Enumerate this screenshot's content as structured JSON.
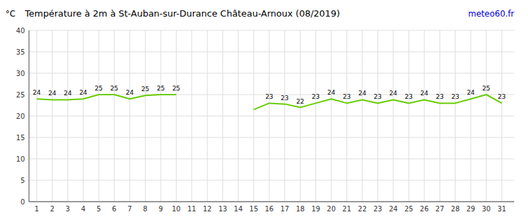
{
  "chart_data": {
    "type": "line",
    "title": "Température à 2m à St-Auban-sur-Durance Château-Arnoux (08/2019)",
    "y_label": "°C",
    "annotations": [
      "meteo60.fr"
    ],
    "x": [
      1,
      2,
      3,
      4,
      5,
      6,
      7,
      8,
      9,
      10,
      11,
      12,
      13,
      14,
      15,
      16,
      17,
      18,
      19,
      20,
      21,
      22,
      23,
      24,
      25,
      26,
      27,
      28,
      29,
      30,
      31
    ],
    "values": [
      24.0,
      23.8,
      23.8,
      24.0,
      25.0,
      25.0,
      24.0,
      24.8,
      25.0,
      25.0,
      null,
      null,
      null,
      null,
      21.5,
      23.0,
      22.8,
      22.0,
      23.0,
      24.0,
      23.0,
      23.8,
      23.0,
      23.8,
      23.0,
      23.8,
      23.0,
      23.0,
      24.0,
      25.0,
      23.0
    ],
    "value_labels": [
      "24",
      "24",
      "24",
      "24",
      "25",
      "25",
      "24",
      "25",
      "25",
      "25",
      null,
      null,
      null,
      null,
      null,
      "23",
      "23",
      "22",
      "23",
      "24",
      "23",
      "24",
      "23",
      "24",
      "23",
      "24",
      "23",
      "23",
      "24",
      "25",
      "23"
    ],
    "data_labels": true,
    "color": "#66cc00",
    "xlim": [
      0.5,
      31.8
    ],
    "xticks": [
      1,
      2,
      3,
      4,
      5,
      6,
      7,
      8,
      9,
      10,
      11,
      12,
      13,
      14,
      15,
      16,
      17,
      18,
      19,
      20,
      21,
      22,
      23,
      24,
      25,
      26,
      27,
      28,
      29,
      30,
      31
    ],
    "ylim": [
      0,
      40
    ],
    "yticks": [
      0,
      5,
      10,
      15,
      20,
      25,
      30,
      35,
      40
    ],
    "grid": true
  }
}
